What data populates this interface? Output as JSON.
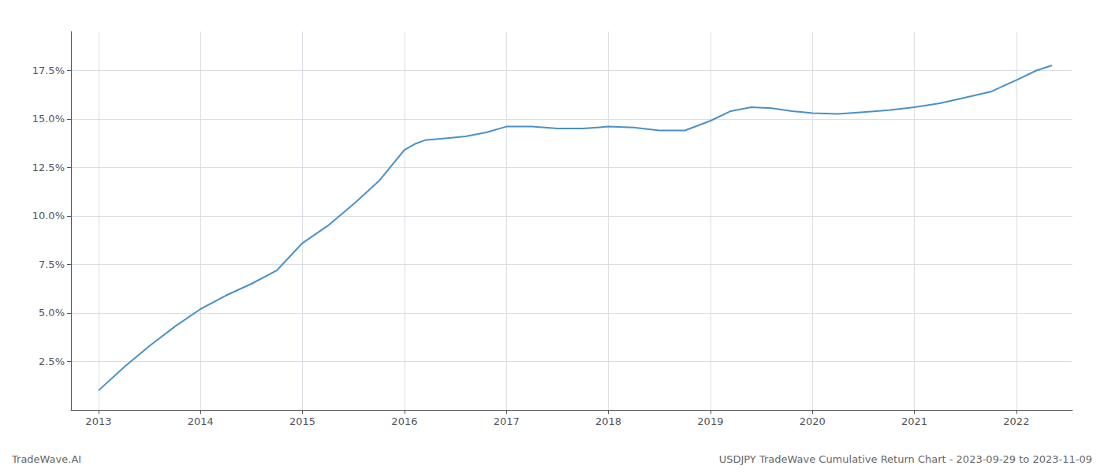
{
  "chart_data": {
    "type": "line",
    "title": "USDJPY TradeWave Cumulative Return Chart - 2023-09-29 to 2023-11-09",
    "annotations": [
      "TradeWave.AI"
    ],
    "x": [
      2013.0,
      2013.25,
      2013.5,
      2013.75,
      2014.0,
      2014.25,
      2014.5,
      2014.75,
      2015.0,
      2015.25,
      2015.5,
      2015.75,
      2016.0,
      2016.1,
      2016.2,
      2016.4,
      2016.6,
      2016.8,
      2017.0,
      2017.25,
      2017.5,
      2017.75,
      2018.0,
      2018.25,
      2018.5,
      2018.75,
      2019.0,
      2019.2,
      2019.4,
      2019.6,
      2019.8,
      2020.0,
      2020.25,
      2020.5,
      2020.75,
      2021.0,
      2021.25,
      2021.5,
      2021.75,
      2022.0,
      2022.2,
      2022.35
    ],
    "values": [
      1.0,
      2.2,
      3.3,
      4.3,
      5.2,
      5.9,
      6.5,
      7.2,
      8.6,
      9.5,
      10.6,
      11.8,
      13.4,
      13.7,
      13.9,
      14.0,
      14.1,
      14.3,
      14.6,
      14.6,
      14.5,
      14.5,
      14.6,
      14.55,
      14.4,
      14.4,
      14.9,
      15.4,
      15.6,
      15.55,
      15.4,
      15.3,
      15.25,
      15.35,
      15.45,
      15.6,
      15.8,
      16.1,
      16.4,
      17.0,
      17.5,
      17.75
    ],
    "color": "#4a90c4",
    "xlim": [
      2012.73,
      2022.55
    ],
    "ylim": [
      0.0,
      19.5
    ],
    "xticks": [
      2013,
      2014,
      2015,
      2016,
      2017,
      2018,
      2019,
      2020,
      2021,
      2022
    ],
    "yticks": [
      {
        "value": 2.5,
        "label": "2.5%"
      },
      {
        "value": 5.0,
        "label": "5.0%"
      },
      {
        "value": 7.5,
        "label": "7.5%"
      },
      {
        "value": 10.0,
        "label": "10.0%"
      },
      {
        "value": 12.5,
        "label": "12.5%"
      },
      {
        "value": 15.0,
        "label": "15.0%"
      },
      {
        "value": 17.5,
        "label": "17.5%"
      }
    ],
    "grid": true
  }
}
